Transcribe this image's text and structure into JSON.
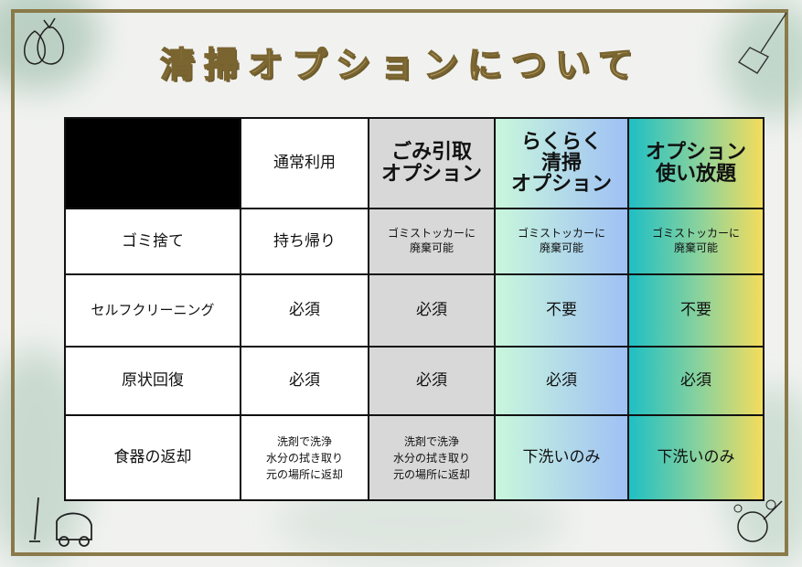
{
  "title": "清掃オプションについて",
  "colors": {
    "frame": "#8a7a4a",
    "title": "#c9b57a",
    "gray_col": "#d8d8d8",
    "blue_col_start": "#c8f7dc",
    "blue_col_end": "#9fc0f5",
    "teal_col_start": "#1fbfc4",
    "teal_col_end": "#f4dc5c"
  },
  "icons": [
    "garbage-bag-icon",
    "broom-icon",
    "vacuum-cleaner-icon",
    "washing-dishes-icon"
  ],
  "table": {
    "headers": [
      "",
      "通常利用",
      "ごみ引取\nオプション",
      "らくらく\n清掃\nオプション",
      "オプション\n使い放題"
    ],
    "rows": [
      {
        "label": "ゴミ捨て",
        "cells": [
          "持ち帰り",
          "ゴミストッカーに\n廃棄可能",
          "ゴミストッカーに\n廃棄可能",
          "ゴミストッカーに\n廃棄可能"
        ]
      },
      {
        "label": "セルフクリーニング",
        "cells": [
          "必須",
          "必須",
          "不要",
          "不要"
        ]
      },
      {
        "label": "原状回復",
        "cells": [
          "必須",
          "必須",
          "必須",
          "必須"
        ]
      },
      {
        "label": "食器の返却",
        "cells": [
          "洗剤で洗浄\n水分の拭き取り\n元の場所に返却",
          "洗剤で洗浄\n水分の拭き取り\n元の場所に返却",
          "下洗いのみ",
          "下洗いのみ"
        ]
      }
    ]
  }
}
